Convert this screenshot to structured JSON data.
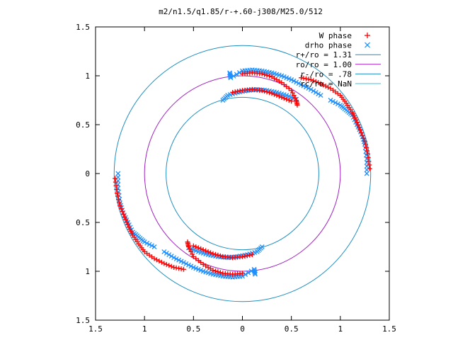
{
  "chart_data": {
    "type": "scatter",
    "title": "m2/n1.5/q1.85/r-+.60-j308/M25.0/512",
    "xlabel": "",
    "ylabel": "",
    "xlim": [
      -1.5,
      1.5
    ],
    "ylim": [
      -1.5,
      1.5
    ],
    "x_tick_values": [
      -1.5,
      -1,
      -0.5,
      0,
      0.5,
      1,
      1.5
    ],
    "y_tick_values": [
      -1.5,
      -1,
      -0.5,
      0,
      0.5,
      1,
      1.5
    ],
    "x_tick_labels": [
      "1.5",
      "1",
      "0.5",
      "0",
      "0.5",
      "1",
      "1.5"
    ],
    "y_tick_labels": [
      "1.5",
      "1",
      "0.5",
      "0",
      "0.5",
      "1",
      "1.5"
    ],
    "grid": false,
    "legend_position": "top-right",
    "colors": {
      "w_phase": "#ff0000",
      "drho_phase": "#1e90ff",
      "r_plus": "#1f8fc0",
      "r_zero": "#a020c0",
      "r_minus": "#1f8fc0",
      "r_c": "#40c0e0",
      "wplus": "#8b1a3a"
    },
    "legend": [
      {
        "label": "W phase",
        "marker": "+",
        "color": "#ff0000"
      },
      {
        "label": "drho phase",
        "marker": "x",
        "color": "#1e90ff"
      },
      {
        "label": "r+/ro = 1.31",
        "marker": "line",
        "color": "#1f8fc0"
      },
      {
        "label": "ro/ro = 1.00",
        "marker": "line",
        "color": "#a020c0"
      },
      {
        "label": "r-/ro = .78",
        "marker": "line",
        "color": "#1f8fc0"
      },
      {
        "label": "rc/ro = NaN",
        "marker": "line",
        "color": "#40c0e0"
      }
    ],
    "circles": [
      {
        "name": "r+/ro = 1.31",
        "radius": 1.31
      },
      {
        "name": "ro/ro = 1.00",
        "radius": 1.0
      },
      {
        "name": "r-/ro = .78",
        "radius": 0.78
      }
    ],
    "series": [
      {
        "name": "W phase",
        "marker": "+",
        "points": [
          [
            0.0,
            1.02
          ],
          [
            0.1,
            1.03
          ],
          [
            0.2,
            1.02
          ],
          [
            0.3,
            0.99
          ],
          [
            0.4,
            0.93
          ],
          [
            0.5,
            0.85
          ],
          [
            0.55,
            0.75
          ],
          [
            0.56,
            0.7
          ],
          [
            -0.1,
            0.83
          ],
          [
            0.0,
            0.85
          ],
          [
            0.1,
            0.86
          ],
          [
            0.2,
            0.85
          ],
          [
            0.3,
            0.82
          ],
          [
            0.4,
            0.78
          ],
          [
            0.5,
            0.74
          ],
          [
            0.6,
            0.98
          ],
          [
            0.7,
            0.96
          ],
          [
            0.8,
            0.92
          ],
          [
            0.9,
            0.87
          ],
          [
            1.0,
            0.8
          ],
          [
            1.06,
            0.72
          ],
          [
            1.12,
            0.63
          ],
          [
            1.16,
            0.55
          ],
          [
            1.2,
            0.45
          ],
          [
            1.25,
            0.33
          ],
          [
            1.28,
            0.2
          ],
          [
            1.3,
            0.05
          ],
          [
            0.0,
            -1.02
          ],
          [
            -0.1,
            -1.03
          ],
          [
            -0.2,
            -1.02
          ],
          [
            -0.3,
            -0.99
          ],
          [
            -0.4,
            -0.93
          ],
          [
            -0.5,
            -0.85
          ],
          [
            -0.55,
            -0.75
          ],
          [
            -0.56,
            -0.7
          ],
          [
            0.1,
            -0.83
          ],
          [
            0.0,
            -0.85
          ],
          [
            -0.1,
            -0.86
          ],
          [
            -0.2,
            -0.85
          ],
          [
            -0.3,
            -0.82
          ],
          [
            -0.4,
            -0.78
          ],
          [
            -0.5,
            -0.74
          ],
          [
            -0.6,
            -0.98
          ],
          [
            -0.7,
            -0.96
          ],
          [
            -0.8,
            -0.92
          ],
          [
            -0.9,
            -0.87
          ],
          [
            -1.0,
            -0.8
          ],
          [
            -1.06,
            -0.72
          ],
          [
            -1.12,
            -0.63
          ],
          [
            -1.16,
            -0.55
          ],
          [
            -1.2,
            -0.45
          ],
          [
            -1.25,
            -0.33
          ],
          [
            -1.28,
            -0.2
          ],
          [
            -1.3,
            -0.05
          ]
        ]
      },
      {
        "name": "drho phase",
        "marker": "x",
        "points": [
          [
            -0.13,
            1.03
          ],
          [
            -0.12,
            0.98
          ],
          [
            0.0,
            1.05
          ],
          [
            0.1,
            1.06
          ],
          [
            0.2,
            1.05
          ],
          [
            0.3,
            1.03
          ],
          [
            0.4,
            1.0
          ],
          [
            0.5,
            0.96
          ],
          [
            0.6,
            0.91
          ],
          [
            0.7,
            0.86
          ],
          [
            0.8,
            0.8
          ],
          [
            -0.2,
            0.75
          ],
          [
            -0.15,
            0.8
          ],
          [
            -0.05,
            0.83
          ],
          [
            0.05,
            0.85
          ],
          [
            0.15,
            0.86
          ],
          [
            0.25,
            0.85
          ],
          [
            0.35,
            0.83
          ],
          [
            0.45,
            0.8
          ],
          [
            0.55,
            0.76
          ],
          [
            0.9,
            0.75
          ],
          [
            1.0,
            0.7
          ],
          [
            1.06,
            0.65
          ],
          [
            1.12,
            0.6
          ],
          [
            1.17,
            0.5
          ],
          [
            1.22,
            0.4
          ],
          [
            1.25,
            0.3
          ],
          [
            1.27,
            0.15
          ],
          [
            1.27,
            0.0
          ],
          [
            0.13,
            -1.03
          ],
          [
            0.12,
            -0.98
          ],
          [
            0.0,
            -1.05
          ],
          [
            -0.1,
            -1.06
          ],
          [
            -0.2,
            -1.05
          ],
          [
            -0.3,
            -1.03
          ],
          [
            -0.4,
            -1.0
          ],
          [
            -0.5,
            -0.96
          ],
          [
            -0.6,
            -0.91
          ],
          [
            -0.7,
            -0.86
          ],
          [
            -0.8,
            -0.8
          ],
          [
            0.2,
            -0.75
          ],
          [
            0.15,
            -0.8
          ],
          [
            0.05,
            -0.83
          ],
          [
            -0.05,
            -0.85
          ],
          [
            -0.15,
            -0.86
          ],
          [
            -0.25,
            -0.85
          ],
          [
            -0.35,
            -0.83
          ],
          [
            -0.45,
            -0.8
          ],
          [
            -0.55,
            -0.76
          ],
          [
            -0.9,
            -0.75
          ],
          [
            -1.0,
            -0.7
          ],
          [
            -1.06,
            -0.65
          ],
          [
            -1.12,
            -0.6
          ],
          [
            -1.17,
            -0.5
          ],
          [
            -1.22,
            -0.4
          ],
          [
            -1.25,
            -0.3
          ],
          [
            -1.27,
            -0.15
          ],
          [
            -1.27,
            0.0
          ]
        ]
      }
    ]
  }
}
